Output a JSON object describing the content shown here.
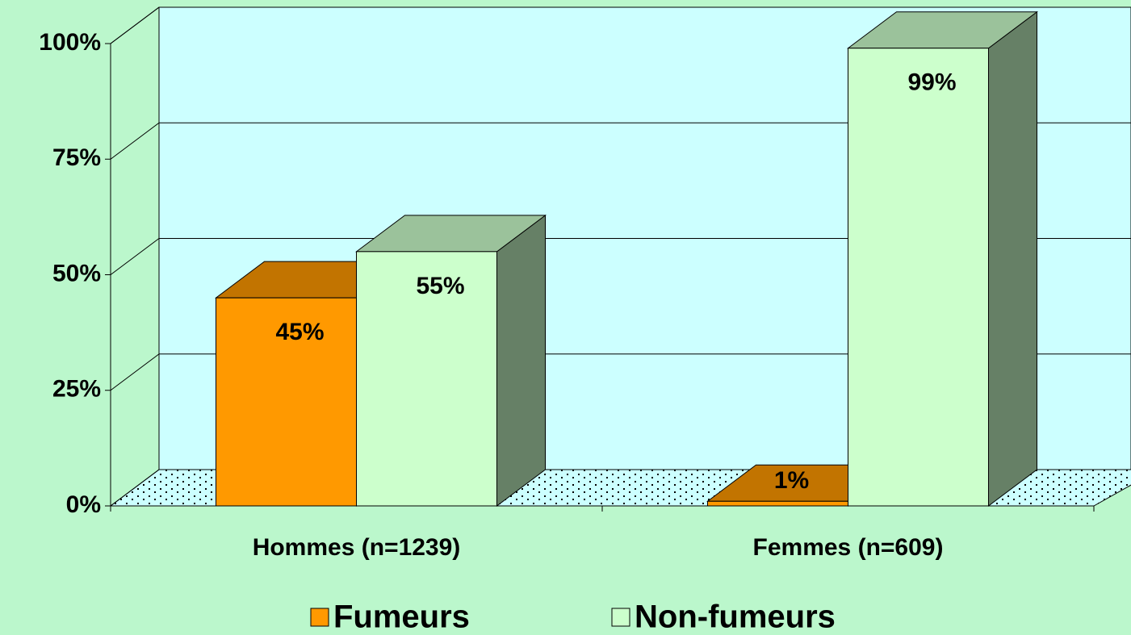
{
  "chart_data": {
    "type": "bar3d",
    "categories": [
      "Hommes (n=1239)",
      "Femmes (n=609)"
    ],
    "series": [
      {
        "name": "Fumeurs",
        "color": "#ff9900",
        "values": [
          45,
          1
        ],
        "value_labels": [
          "45%",
          "1%"
        ]
      },
      {
        "name": "Non-fumeurs",
        "color": "#ccffcc",
        "values": [
          55,
          99
        ],
        "value_labels": [
          "55%",
          "99%"
        ]
      }
    ],
    "ylim": [
      0,
      100
    ],
    "yticks": [
      {
        "value": 0,
        "label": "0%"
      },
      {
        "value": 25,
        "label": "25%"
      },
      {
        "value": 50,
        "label": "50%"
      },
      {
        "value": 75,
        "label": "75%"
      },
      {
        "value": 100,
        "label": "100%"
      }
    ],
    "grid": true,
    "legend": "bottom"
  }
}
